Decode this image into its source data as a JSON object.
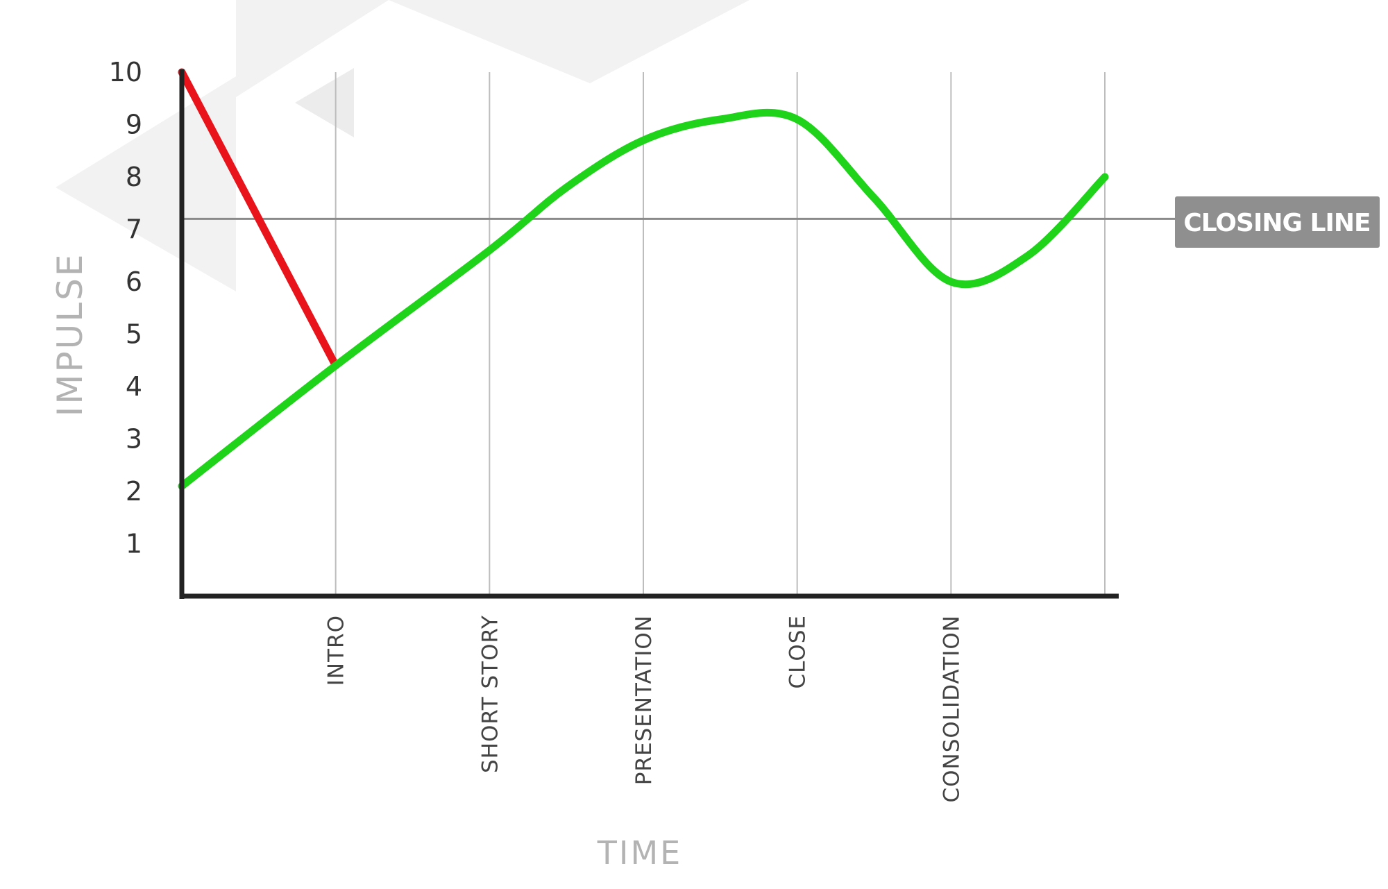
{
  "chart_data": {
    "type": "line",
    "xlabel": "TIME",
    "ylabel": "IMPULSE",
    "ylim": [
      0,
      10
    ],
    "y_ticks": [
      1,
      2,
      3,
      4,
      5,
      6,
      7,
      8,
      9,
      10
    ],
    "categories": [
      "INTRO",
      "SHORT STORY",
      "PRESENTATION",
      "CLOSE",
      "CONSOLIDATION"
    ],
    "xlim": [
      0,
      6
    ],
    "grid": true,
    "reference_line": {
      "y": 7.2,
      "label": "CLOSING LINE"
    },
    "series": [
      {
        "color": "#e8131b",
        "points": [
          [
            0,
            10
          ],
          [
            1,
            4.4
          ]
        ]
      },
      {
        "color": "#1fd21a",
        "points": [
          [
            0,
            2.1
          ],
          [
            1,
            4.4
          ],
          [
            2,
            6.6
          ],
          [
            2.5,
            7.8
          ],
          [
            3,
            8.7
          ],
          [
            3.5,
            9.1
          ],
          [
            4,
            9.1
          ],
          [
            4.5,
            7.6
          ],
          [
            5,
            6.0
          ],
          [
            5.5,
            6.5
          ],
          [
            6,
            8.0
          ]
        ]
      }
    ],
    "colors": {
      "axis": "#222222",
      "grid": "#bdbdbd",
      "closing_line": "#8a8a8a",
      "badge": "#8f8f8f",
      "axis_title": "#b3b3b3",
      "watermark": "#f2f2f2"
    }
  }
}
